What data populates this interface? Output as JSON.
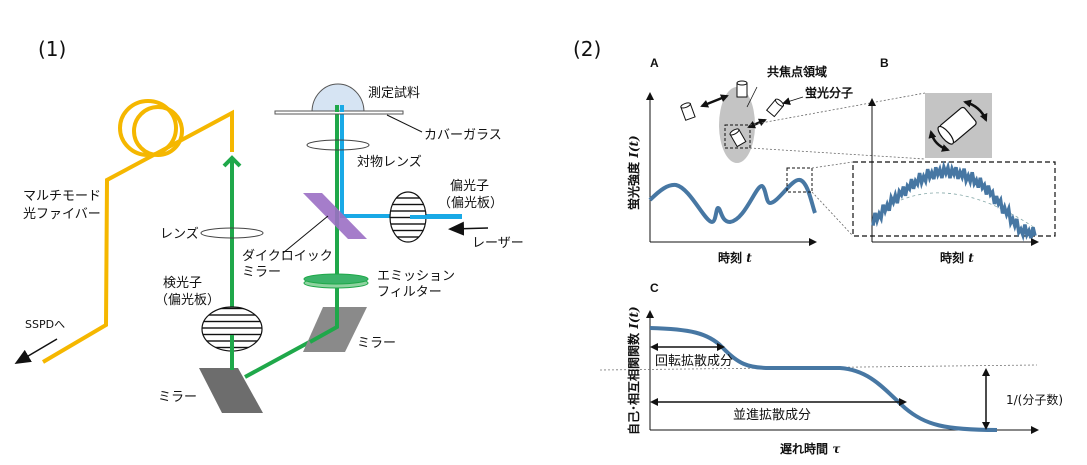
{
  "colors": {
    "fiber": "#f5b700",
    "emission": "#1fa84a",
    "laser": "#19a9e6",
    "dichroic": "#9b6fc4",
    "mirror": "#777777",
    "curve": "#4777a3",
    "focal": "#c4c4c4",
    "sample": "#d6e4f3"
  },
  "panel1": {
    "label": "(1)",
    "sample": "測定試料",
    "cover_glass": "カバーガラス",
    "objective": "対物レンズ",
    "polarizer_1": "偏光子",
    "polarizer_2": "（偏光板）",
    "laser": "レーザー",
    "dichroic_1": "ダイクロイック",
    "dichroic_2": "ミラー",
    "emission_1": "エミッション",
    "emission_2": "フィルター",
    "mirror_right": "ミラー",
    "mirror_left": "ミラー",
    "analyzer_1": "検光子",
    "analyzer_2": "（偏光板）",
    "lens": "レンズ",
    "fiber_1": "マルチモード",
    "fiber_2": "光ファイバー",
    "detector": "SSPDへ"
  },
  "panel2": {
    "label": "(2)",
    "A": {
      "label": "A",
      "ylabel": "蛍光強度",
      "ylabel_var": "I(t)",
      "xlabel": "時刻",
      "xlabel_var": "t",
      "focal_region": "共焦点領域",
      "molecule": "蛍光分子"
    },
    "B": {
      "label": "B",
      "xlabel": "時刻",
      "xlabel_var": "t"
    },
    "C": {
      "label": "C",
      "ylabel": "自己･相互相関関数",
      "ylabel_var": "I(t)",
      "xlabel": "遅れ時間",
      "xlabel_var": "τ",
      "rot": "回転拡散成分",
      "trans": "並進拡散成分",
      "amp": "1/(分子数)"
    }
  }
}
